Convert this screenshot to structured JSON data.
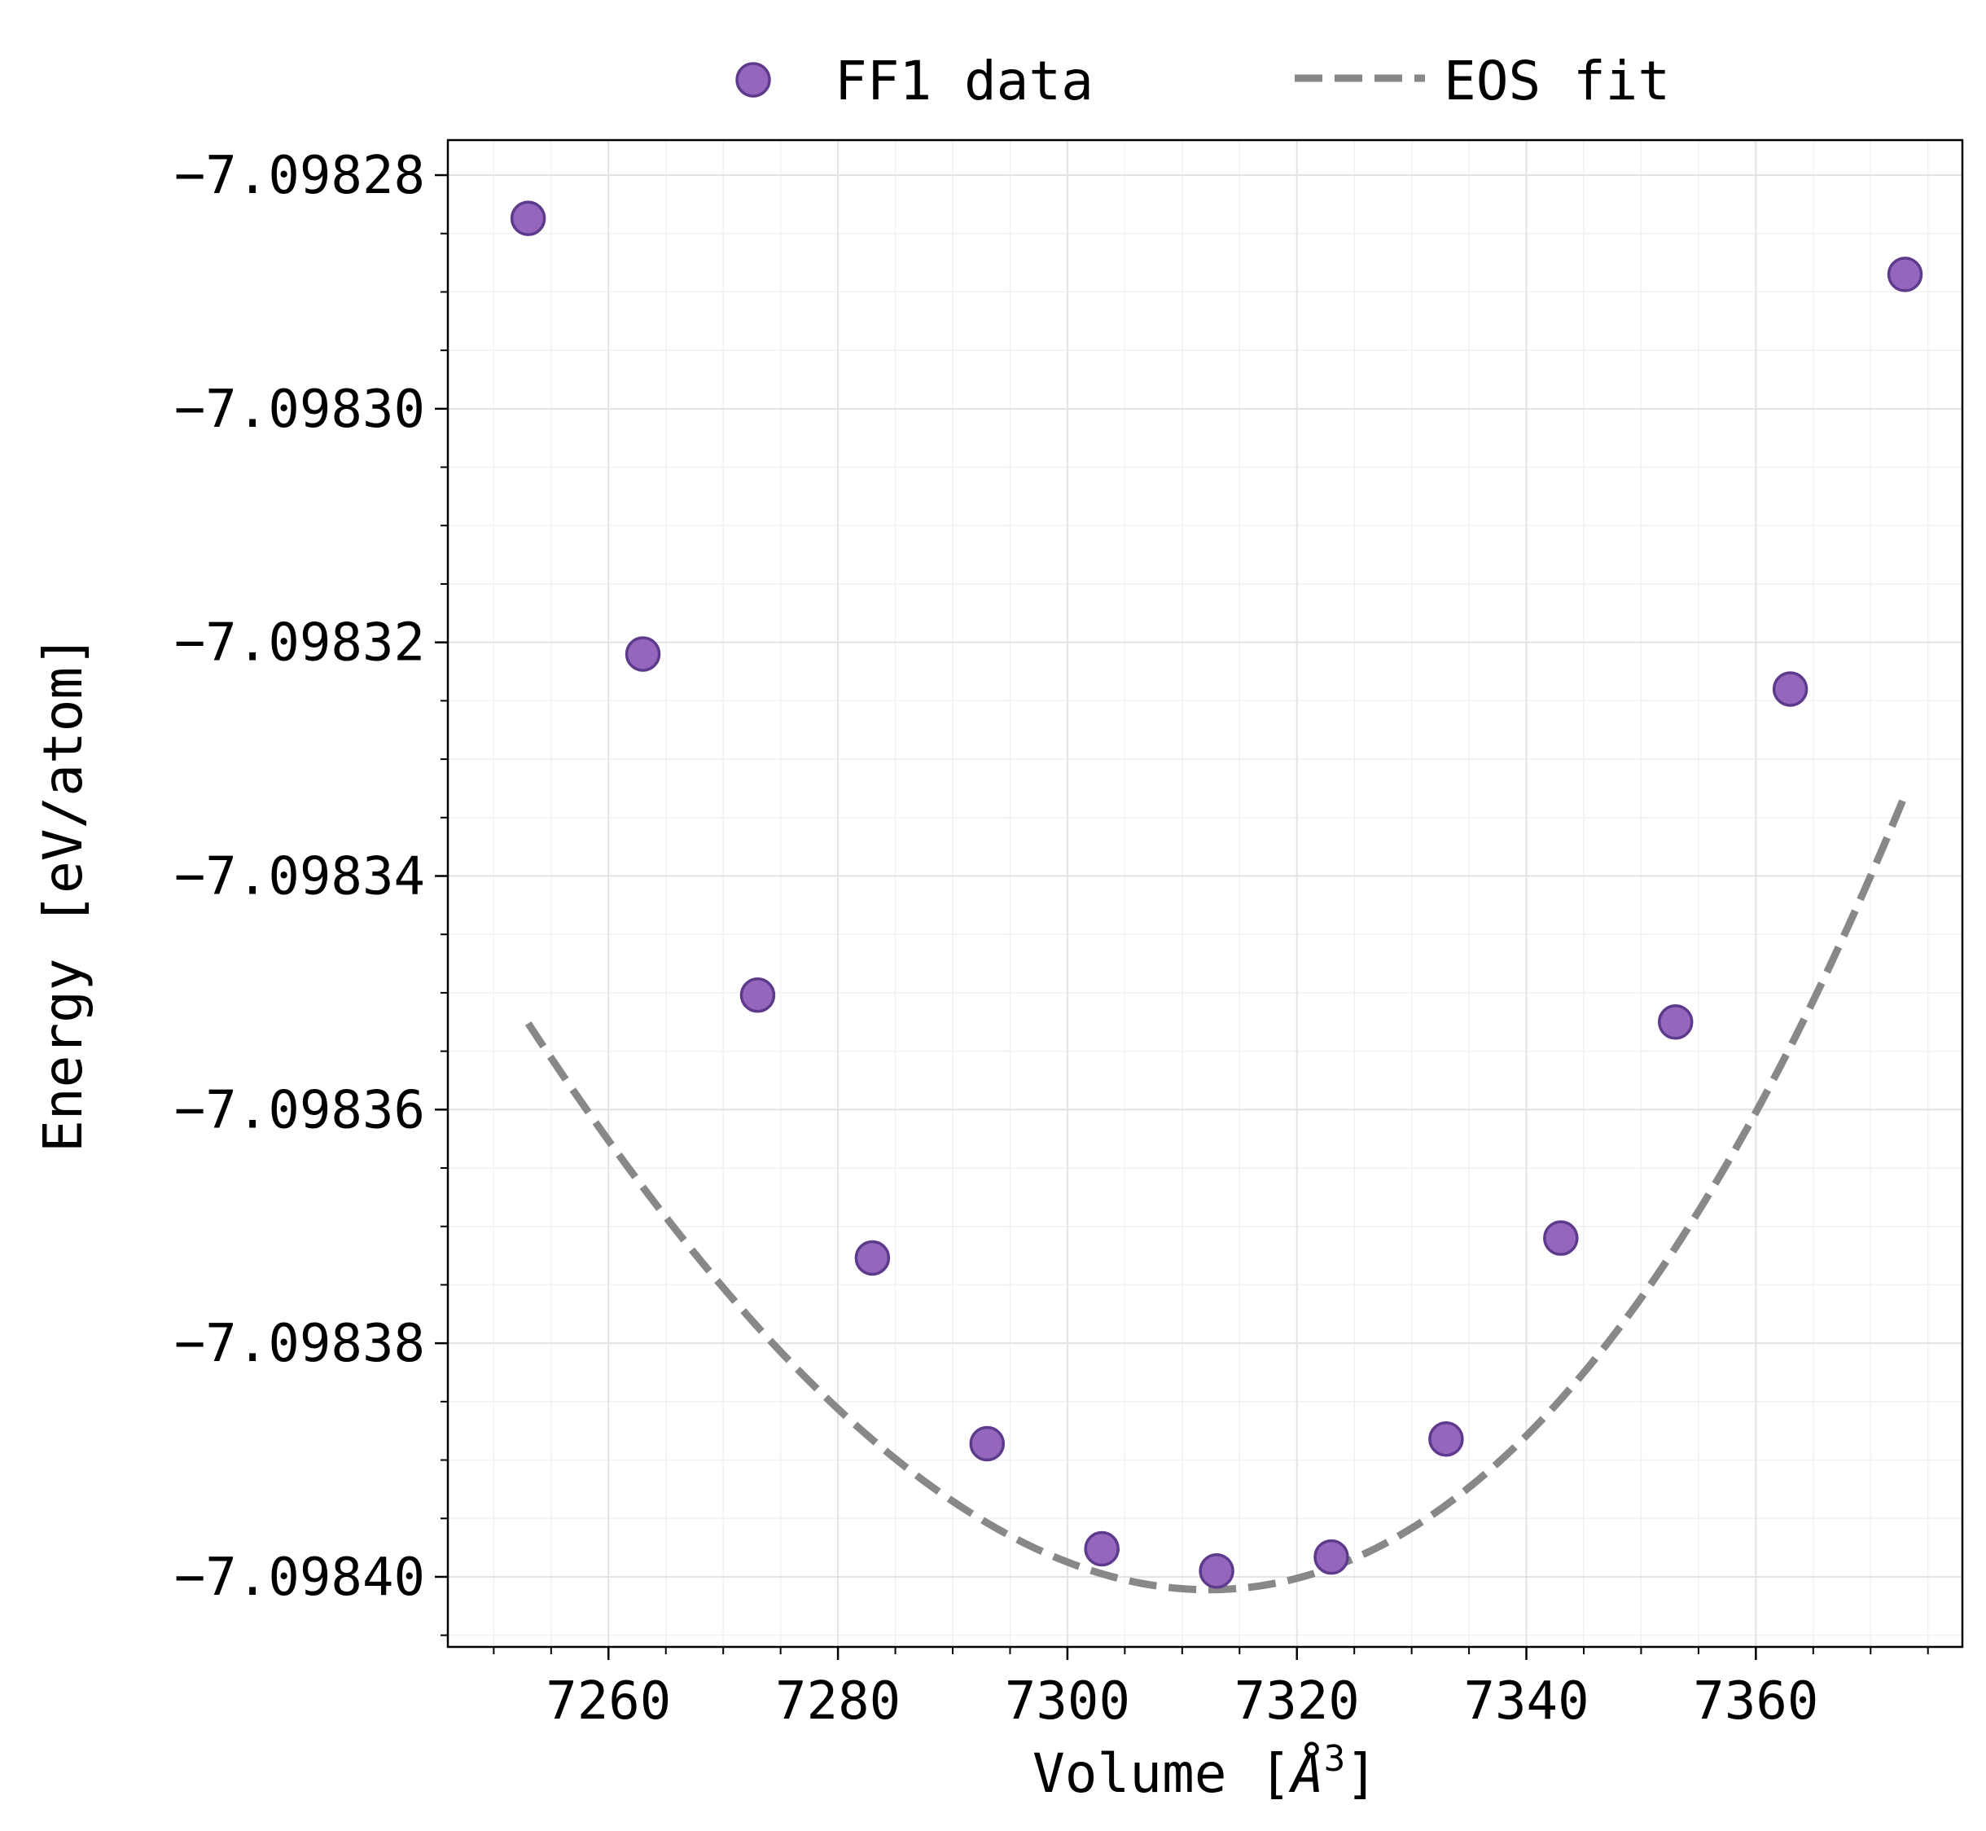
{
  "chart_data": {
    "type": "scatter",
    "xlabel": "Volume [Å³]",
    "xlabel_main": "Volume [",
    "xlabel_unit": "Å",
    "xlabel_sup": "3",
    "xlabel_close": "]",
    "ylabel": "Energy [eV/atom]",
    "xlim": [
      7246,
      7378
    ],
    "ylim": [
      -7.098406,
      -7.098277
    ],
    "x_ticks": [
      7260,
      7280,
      7300,
      7320,
      7340,
      7360
    ],
    "x_tick_labels": [
      "7260",
      "7280",
      "7300",
      "7320",
      "7340",
      "7360"
    ],
    "y_ticks": [
      -7.09828,
      -7.0983,
      -7.09832,
      -7.09834,
      -7.09836,
      -7.09838,
      -7.0984
    ],
    "y_tick_labels": [
      "−7.09828",
      "−7.09830",
      "−7.09832",
      "−7.09834",
      "−7.09836",
      "−7.09838",
      "−7.09840"
    ],
    "x_minor_step": 5,
    "y_minor_step": 5e-06,
    "grid": true,
    "legend_position": "top-outside",
    "series": [
      {
        "name": "FF1 data",
        "kind": "scatter",
        "color": "#9467bd",
        "edge_color": "#5e3a8c",
        "x": [
          7253,
          7263,
          7273,
          7283,
          7293,
          7303,
          7313,
          7323,
          7333,
          7343,
          7353,
          7363,
          7373
        ],
        "y": [
          -7.0982837,
          -7.098321,
          -7.0983502,
          -7.0983727,
          -7.0983886,
          -7.0983976,
          -7.0983995,
          -7.0983983,
          -7.0983882,
          -7.098371,
          -7.0983525,
          -7.098324,
          -7.0982885
        ]
      },
      {
        "name": "EOS fit",
        "kind": "line",
        "style": "dashed",
        "color": "#888888",
        "x_range": [
          7253,
          7373
        ],
        "v0": 7312.3,
        "e0": -7.0984011,
        "a": 1.61e-08,
        "b": 3.9e-11
      }
    ]
  }
}
